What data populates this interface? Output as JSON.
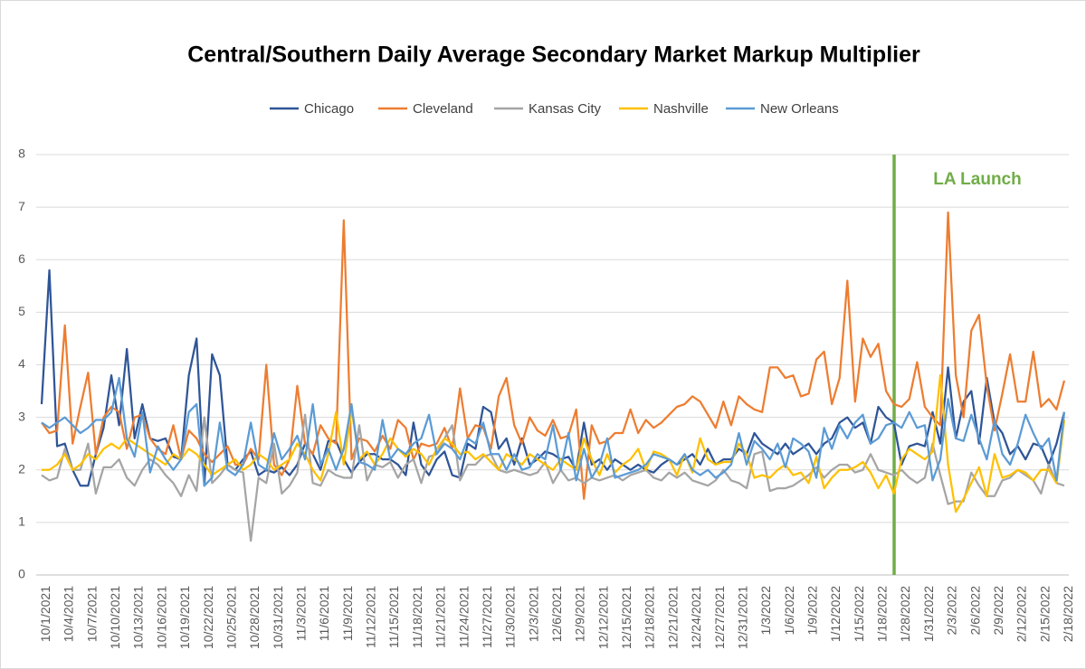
{
  "chart_data": {
    "type": "line",
    "title": "Central/Southern Daily Average Secondary Market Markup Multiplier",
    "categories": [
      "10/1",
      null,
      null,
      "10/4",
      null,
      null,
      "10/7",
      null,
      null,
      "10/10",
      null,
      null,
      "10/13",
      null,
      null,
      "10/16",
      null,
      null,
      "10/19",
      null,
      null,
      "10/22",
      null,
      null,
      "10/25",
      null,
      null,
      "10/28",
      null,
      null,
      "10/31",
      null,
      null,
      "11/3",
      null,
      null,
      "11/6",
      null,
      null,
      "11/9",
      null,
      null,
      "11/12",
      null,
      null,
      "11/15",
      null,
      null,
      "11/18",
      null,
      null,
      "11/21",
      null,
      null,
      "11/24",
      null,
      null,
      "11/27",
      null,
      null,
      "11/30",
      null,
      null,
      "12/3",
      null,
      null,
      "12/6",
      null,
      null,
      "12/9",
      null,
      null,
      "12/12",
      null,
      null,
      "12/15",
      null,
      null,
      "12/18",
      null,
      null,
      "12/21",
      null,
      null,
      "12/24",
      null,
      null,
      "12/27",
      null,
      null,
      "12/31",
      null,
      null,
      "1/3",
      null,
      null,
      "1/6",
      null,
      null,
      "1/9",
      null,
      null,
      "1/12",
      null,
      null,
      "1/15",
      null,
      null,
      "1/18",
      null,
      null,
      "1/28",
      null,
      null,
      "1/31",
      null,
      null,
      "2/3",
      null,
      null,
      "2/6",
      null,
      null,
      "2/9",
      null,
      null,
      "2/12",
      null,
      null,
      "2/15",
      null,
      null,
      "2/18"
    ],
    "category_year_labels": [
      "2021",
      "2022"
    ],
    "series": [
      {
        "name": "Chicago",
        "color": "#2f5597",
        "values": [
          3.25,
          5.8,
          2.45,
          2.5,
          2.0,
          1.7,
          1.7,
          2.3,
          2.8,
          3.8,
          2.85,
          4.3,
          2.6,
          3.25,
          2.6,
          2.55,
          2.6,
          2.25,
          2.2,
          3.8,
          4.5,
          1.7,
          4.2,
          3.8,
          2.1,
          2.0,
          2.2,
          2.35,
          1.9,
          2.0,
          1.95,
          2.05,
          1.9,
          2.1,
          2.5,
          2.3,
          2.0,
          2.55,
          2.55,
          2.2,
          1.95,
          2.15,
          2.3,
          2.3,
          2.2,
          2.2,
          2.1,
          1.9,
          2.9,
          2.1,
          1.9,
          2.2,
          2.35,
          1.9,
          1.85,
          2.5,
          2.4,
          3.2,
          3.1,
          2.4,
          2.6,
          2.1,
          2.6,
          2.1,
          2.2,
          2.35,
          2.3,
          2.2,
          2.25,
          2.0,
          2.9,
          2.1,
          2.2,
          2.0,
          2.2,
          2.1,
          2.0,
          2.1,
          2.0,
          1.95,
          2.1,
          2.2,
          2.1,
          2.2,
          2.3,
          2.1,
          2.4,
          2.1,
          2.2,
          2.2,
          2.4,
          2.3,
          2.7,
          2.5,
          2.4,
          2.3,
          2.5,
          2.3,
          2.4,
          2.5,
          2.3,
          2.5,
          2.6,
          2.9,
          3.0,
          2.8,
          2.9,
          2.5,
          3.2,
          3.0,
          2.9,
          2.1,
          2.45,
          2.5,
          2.45,
          3.1,
          2.5,
          3.95,
          2.6,
          3.3,
          3.5,
          2.5,
          3.75,
          2.9,
          2.7,
          2.3,
          2.45,
          2.2,
          2.5,
          2.45,
          2.1,
          2.5,
          3.1
        ]
      },
      {
        "name": "Cleveland",
        "color": "#ed7d31",
        "values": [
          2.9,
          2.7,
          2.75,
          4.75,
          2.5,
          3.2,
          3.85,
          2.3,
          3.0,
          3.2,
          3.1,
          2.4,
          3.0,
          3.05,
          2.6,
          2.4,
          2.3,
          2.85,
          2.2,
          2.75,
          2.6,
          2.3,
          2.15,
          2.3,
          2.45,
          2.1,
          2.1,
          2.4,
          2.2,
          4.0,
          2.1,
          1.9,
          2.2,
          3.6,
          2.5,
          2.3,
          2.85,
          2.6,
          2.5,
          6.75,
          2.2,
          2.6,
          2.55,
          2.35,
          2.65,
          2.4,
          2.95,
          2.8,
          2.2,
          2.5,
          2.45,
          2.5,
          2.8,
          2.4,
          3.55,
          2.6,
          2.85,
          2.8,
          2.4,
          3.4,
          3.75,
          2.85,
          2.5,
          3.0,
          2.75,
          2.65,
          2.95,
          2.6,
          2.65,
          3.15,
          1.45,
          2.85,
          2.5,
          2.55,
          2.7,
          2.7,
          3.15,
          2.7,
          2.95,
          2.8,
          2.9,
          3.05,
          3.2,
          3.25,
          3.4,
          3.3,
          3.05,
          2.8,
          3.3,
          2.85,
          3.4,
          3.25,
          3.15,
          3.1,
          3.95,
          3.95,
          3.75,
          3.8,
          3.4,
          3.45,
          4.1,
          4.25,
          3.25,
          3.75,
          5.6,
          3.3,
          4.5,
          4.15,
          4.4,
          3.5,
          3.25,
          3.2,
          3.35,
          4.05,
          3.2,
          3.0,
          2.85,
          6.9,
          3.8,
          3.0,
          4.65,
          4.95,
          3.6,
          2.75,
          3.45,
          4.2,
          3.3,
          3.3,
          4.25,
          3.2,
          3.35,
          3.15,
          3.7
        ]
      },
      {
        "name": "Kansas City",
        "color": "#a5a5a5",
        "values": [
          1.9,
          1.8,
          1.85,
          2.4,
          2.0,
          2.0,
          2.5,
          1.55,
          2.05,
          2.05,
          2.2,
          1.85,
          1.7,
          2.0,
          2.2,
          2.1,
          1.9,
          1.75,
          1.5,
          1.9,
          1.6,
          3.0,
          1.75,
          1.9,
          2.1,
          2.0,
          1.95,
          0.65,
          1.85,
          1.75,
          2.5,
          1.55,
          1.7,
          1.95,
          3.05,
          1.75,
          1.7,
          2.0,
          1.9,
          1.85,
          1.85,
          2.85,
          1.8,
          2.1,
          2.05,
          2.15,
          1.85,
          2.1,
          2.2,
          1.75,
          2.25,
          2.3,
          2.6,
          2.85,
          1.8,
          2.1,
          2.1,
          2.25,
          2.3,
          2.0,
          1.95,
          2.0,
          1.95,
          1.9,
          1.95,
          2.15,
          1.75,
          2.0,
          1.8,
          1.85,
          1.75,
          1.85,
          1.8,
          1.85,
          1.9,
          1.8,
          1.9,
          1.95,
          2.0,
          1.85,
          1.8,
          1.95,
          1.85,
          1.95,
          1.8,
          1.75,
          1.7,
          1.8,
          2.0,
          1.8,
          1.75,
          1.65,
          2.3,
          2.35,
          1.6,
          1.65,
          1.65,
          1.7,
          1.8,
          1.9,
          2.05,
          1.85,
          2.0,
          2.1,
          2.1,
          1.95,
          2.0,
          2.3,
          2.0,
          1.95,
          1.9,
          2.0,
          1.85,
          1.75,
          1.85,
          2.5,
          1.9,
          1.35,
          1.4,
          1.4,
          1.95,
          1.7,
          1.5,
          1.5,
          1.8,
          1.85,
          2.0,
          1.9,
          1.8,
          1.55,
          2.1,
          1.75,
          1.7
        ]
      },
      {
        "name": "Nashville",
        "color": "#ffc000",
        "values": [
          2.0,
          2.0,
          2.1,
          2.3,
          2.0,
          2.1,
          2.3,
          2.2,
          2.4,
          2.5,
          2.4,
          2.6,
          2.5,
          2.4,
          2.3,
          2.2,
          2.1,
          2.3,
          2.2,
          2.4,
          2.3,
          2.1,
          1.9,
          2.0,
          2.1,
          2.2,
          2.0,
          2.1,
          2.3,
          2.2,
          2.0,
          2.1,
          2.2,
          2.5,
          2.3,
          2.0,
          1.8,
          2.3,
          3.1,
          2.1,
          3.15,
          2.2,
          2.35,
          2.1,
          2.3,
          2.6,
          2.4,
          2.25,
          2.4,
          2.3,
          2.1,
          2.4,
          2.6,
          2.5,
          2.3,
          2.35,
          2.2,
          2.3,
          2.15,
          2.0,
          2.3,
          2.2,
          2.1,
          2.3,
          2.2,
          2.1,
          2.0,
          2.2,
          2.1,
          2.0,
          2.6,
          2.2,
          1.9,
          2.3,
          1.95,
          2.1,
          2.2,
          2.4,
          2.0,
          2.35,
          2.3,
          2.2,
          1.9,
          2.3,
          1.95,
          2.6,
          2.2,
          2.1,
          2.15,
          2.15,
          2.5,
          2.3,
          1.85,
          1.9,
          1.85,
          2.0,
          2.1,
          1.9,
          1.95,
          1.75,
          2.25,
          1.65,
          1.85,
          2.0,
          2.0,
          2.05,
          2.15,
          1.95,
          1.65,
          1.9,
          1.55,
          2.2,
          2.4,
          2.3,
          2.2,
          2.35,
          3.8,
          2.1,
          1.2,
          1.45,
          1.75,
          2.05,
          1.5,
          2.3,
          1.85,
          1.9,
          2.0,
          1.95,
          1.8,
          2.0,
          2.0,
          1.75,
          2.95
        ]
      },
      {
        "name": "New Orleans",
        "color": "#5b9bd5",
        "values": [
          2.9,
          2.8,
          2.9,
          3.0,
          2.85,
          2.7,
          2.8,
          2.95,
          2.95,
          3.1,
          3.75,
          2.6,
          2.25,
          3.1,
          1.95,
          2.45,
          2.2,
          2.0,
          2.2,
          3.1,
          3.25,
          1.7,
          1.85,
          2.9,
          2.0,
          1.9,
          2.1,
          2.9,
          2.1,
          2.0,
          2.7,
          2.2,
          2.4,
          2.65,
          2.2,
          3.25,
          2.1,
          2.4,
          2.0,
          2.4,
          3.25,
          2.15,
          2.1,
          2.0,
          2.95,
          2.2,
          2.4,
          2.3,
          2.5,
          2.6,
          3.05,
          2.3,
          2.5,
          2.4,
          2.2,
          2.6,
          2.5,
          2.9,
          2.3,
          2.3,
          2.0,
          2.3,
          2.0,
          2.05,
          2.3,
          2.2,
          2.85,
          2.0,
          2.7,
          1.8,
          2.4,
          1.85,
          2.1,
          2.6,
          1.85,
          1.9,
          1.95,
          2.0,
          2.1,
          2.3,
          2.25,
          2.2,
          2.1,
          2.3,
          2.0,
          1.9,
          2.0,
          1.85,
          1.95,
          2.1,
          2.7,
          2.1,
          2.55,
          2.4,
          2.2,
          2.5,
          2.05,
          2.6,
          2.5,
          2.35,
          1.85,
          2.8,
          2.4,
          2.85,
          2.6,
          2.9,
          3.05,
          2.5,
          2.6,
          2.85,
          2.9,
          2.8,
          3.1,
          2.8,
          2.85,
          1.8,
          2.2,
          3.35,
          2.6,
          2.55,
          3.05,
          2.6,
          2.2,
          2.95,
          2.3,
          2.1,
          2.5,
          3.05,
          2.7,
          2.4,
          2.6,
          1.8,
          3.1
        ]
      }
    ],
    "ylim": [
      0,
      8
    ],
    "yticks": [
      0,
      1,
      2,
      3,
      4,
      5,
      6,
      7,
      8
    ],
    "grid": true,
    "legend": "top",
    "annotation": {
      "text": "LA Launch",
      "color": "#70ad47"
    }
  }
}
